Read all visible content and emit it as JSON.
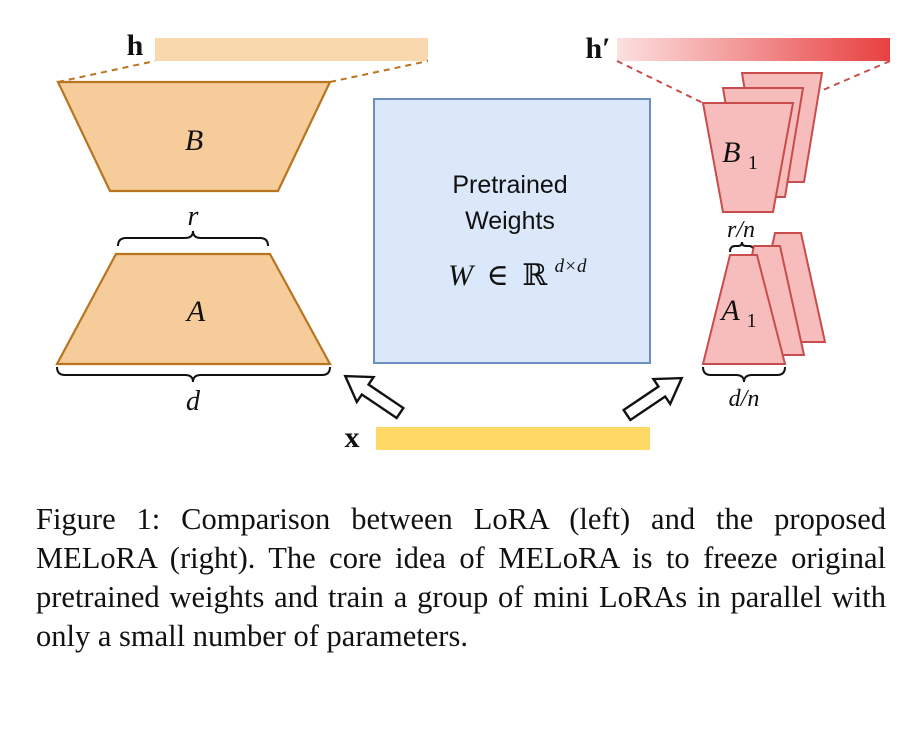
{
  "figure": {
    "left": {
      "h_label": "h",
      "b_label": "B",
      "a_label": "A",
      "r_label": "r",
      "d_label": "d"
    },
    "center": {
      "title_line1": "Pretrained",
      "title_line2": "Weights",
      "formula_W": "W",
      "formula_in": "∈",
      "formula_R": "ℝ",
      "formula_exp": "d×d"
    },
    "right": {
      "h_label": "h′",
      "b_label": "B",
      "b_sub": "1",
      "a_label": "A",
      "a_sub": "1",
      "r_label": "r/n",
      "d_label": "d/n"
    },
    "x_label": "x",
    "colors": {
      "orange_fill": "#F5CC9A",
      "orange_stroke": "#B8741E",
      "h_bar": "#FAD8AE",
      "blue_fill": "#DAE8FA",
      "blue_stroke": "#6C8EBF",
      "pink_fill": "#F7BDBD",
      "pink_stroke": "#C84C4C",
      "x_bar": "#FFD966",
      "h_prime_start": "#FCE0E0",
      "h_prime_end": "#E84040"
    }
  },
  "caption": "Figure 1: Comparison between LoRA (left) and the proposed MELoRA (right). The core idea of MELoRA is to freeze original pretrained weights and train a group of mini LoRAs in parallel with only a small number of parameters."
}
